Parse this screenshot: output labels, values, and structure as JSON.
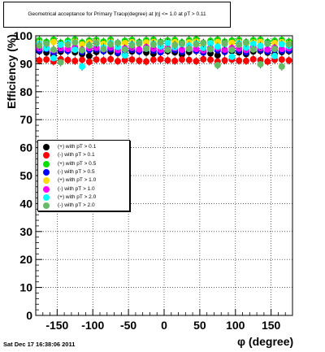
{
  "title": "Geometrical acceptance for Primary Tracφ(degree) at |η| <= 1.0 at pT > 0.11",
  "timestamp": "Sat Dec 17 16:38:06 2011",
  "chart_data": {
    "type": "scatter",
    "xlabel": "φ (degree)",
    "ylabel": "Efficiency (%)",
    "xlim": [
      -180,
      180
    ],
    "ylim": [
      0,
      100
    ],
    "xticks": [
      -150,
      -100,
      -50,
      0,
      50,
      100,
      150
    ],
    "yticks": [
      0,
      10,
      20,
      30,
      40,
      50,
      60,
      70,
      80,
      90,
      100
    ],
    "grid": true,
    "legend_position": "left-center",
    "x": [
      -175,
      -165,
      -155,
      -145,
      -135,
      -125,
      -115,
      -105,
      -95,
      -85,
      -75,
      -65,
      -55,
      -45,
      -35,
      -25,
      -15,
      -5,
      5,
      15,
      25,
      35,
      45,
      55,
      65,
      75,
      85,
      95,
      105,
      115,
      125,
      135,
      145,
      155,
      165,
      175
    ],
    "series": [
      {
        "name": "(+) with pT > 0.1",
        "color": "#000000",
        "y": [
          94.5,
          94,
          93,
          94.3,
          94.6,
          94.1,
          93.5,
          92.8,
          94.2,
          94.6,
          94.3,
          93.8,
          93.2,
          94.4,
          94.5,
          94.0,
          93.6,
          94.3,
          94.5,
          94.1,
          93.3,
          94.2,
          94.6,
          94.4,
          93.7,
          93.0,
          94.3,
          94.5,
          94.1,
          93.5,
          94.4,
          94.6,
          94.0,
          93.4,
          94.2,
          94.5
        ]
      },
      {
        "name": "(-) with pT > 0.1",
        "color": "#ff0000",
        "y": [
          91.2,
          91.5,
          90.8,
          91.6,
          91.3,
          91.0,
          91.4,
          90.7,
          91.5,
          91.2,
          91.6,
          90.9,
          91.3,
          91.5,
          91.1,
          90.8,
          91.4,
          91.6,
          91.2,
          91.0,
          91.5,
          91.3,
          90.9,
          91.6,
          91.4,
          90.8,
          91.2,
          91.5,
          91.1,
          91.0,
          91.6,
          91.3,
          90.8,
          91.4,
          91.5,
          91.2
        ]
      },
      {
        "name": "(+) with pT > 0.5",
        "color": "#00dd00",
        "y": [
          98.4,
          97.8,
          98.6,
          97.5,
          98.2,
          98.7,
          97.6,
          98.3,
          98.5,
          97.9,
          98.6,
          97.4,
          98.2,
          98.5,
          97.7,
          98.4,
          98.6,
          97.8,
          98.3,
          98.5,
          97.6,
          98.4,
          98.7,
          97.5,
          98.2,
          98.6,
          97.9,
          98.3,
          98.5,
          97.7,
          98.4,
          98.6,
          97.8,
          98.2,
          98.5,
          97.9
        ]
      },
      {
        "name": "(-) with pT > 0.5",
        "color": "#0000ff",
        "y": [
          94.8,
          95.2,
          93.9,
          95.0,
          94.6,
          95.3,
          94.2,
          94.9,
          95.1,
          94.5,
          95.2,
          94.0,
          94.8,
          95.0,
          94.4,
          95.3,
          94.7,
          94.1,
          95.0,
          94.9,
          94.3,
          95.2,
          94.6,
          94.0,
          95.1,
          94.8,
          94.2,
          95.0,
          94.7,
          94.1,
          95.3,
          94.9,
          94.4,
          95.0,
          94.6,
          94.8
        ]
      },
      {
        "name": "(+) with pT > 1.0",
        "color": "#ffdd00",
        "y": [
          97.5,
          97.0,
          97.8,
          96.8,
          97.4,
          97.9,
          96.9,
          97.6,
          97.7,
          97.1,
          97.8,
          96.7,
          97.4,
          97.7,
          97.0,
          97.6,
          97.8,
          97.1,
          97.5,
          97.7,
          96.9,
          97.6,
          97.9,
          96.8,
          97.4,
          97.8,
          97.1,
          97.5,
          97.7,
          97.0,
          97.6,
          97.8,
          97.1,
          97.4,
          97.7,
          97.2
        ]
      },
      {
        "name": "(-) with pT > 1.0",
        "color": "#ff00ff",
        "y": [
          95.5,
          95.8,
          94.8,
          95.6,
          95.3,
          95.9,
          95.0,
          95.6,
          95.7,
          95.2,
          95.8,
          94.9,
          95.5,
          95.7,
          95.1,
          95.9,
          95.4,
          94.9,
          95.6,
          95.6,
          95.0,
          95.8,
          95.3,
          94.8,
          95.7,
          95.5,
          95.0,
          95.6,
          95.4,
          94.9,
          95.9,
          95.6,
          95.1,
          95.7,
          95.3,
          95.5
        ]
      },
      {
        "name": "(+) with pT > 2.0",
        "color": "#00ffff",
        "y": [
          97.2,
          95.5,
          92.0,
          96.8,
          97.5,
          95.0,
          89.0,
          96.6,
          97.2,
          95.8,
          97.4,
          96.0,
          93.0,
          96.9,
          97.3,
          95.4,
          97.1,
          96.2,
          97.4,
          95.9,
          97.0,
          96.5,
          97.2,
          95.7,
          97.3,
          96.1,
          97.0,
          92.5,
          97.3,
          95.8,
          97.1,
          96.4,
          97.2,
          92.8,
          97.0,
          96.3
        ]
      },
      {
        "name": "(-) with pT > 2.0",
        "color": "#66bb66",
        "y": [
          96.5,
          97.2,
          95.0,
          90.5,
          96.8,
          97.6,
          94.8,
          96.5,
          97.4,
          95.2,
          96.9,
          97.5,
          95.1,
          96.6,
          97.3,
          95.4,
          96.8,
          97.5,
          95.0,
          96.7,
          97.2,
          95.3,
          96.9,
          97.4,
          95.2,
          89.5,
          97.3,
          95.0,
          96.8,
          97.5,
          95.1,
          89.8,
          97.2,
          95.3,
          89.0,
          97.0
        ]
      }
    ]
  }
}
